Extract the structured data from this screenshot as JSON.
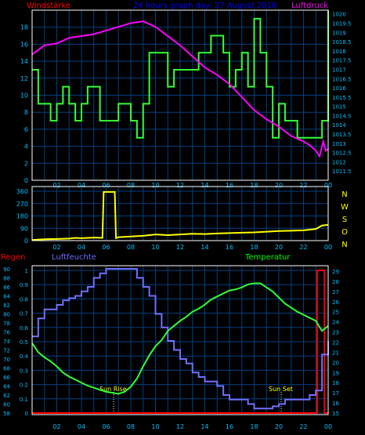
{
  "header": {
    "left_label": "Windstärke",
    "title": "24 hours graph day:  27 August  2018",
    "right_label": "Luftdruck"
  },
  "colors": {
    "background": "#000000",
    "grid": "#004080",
    "frame": "#ffffff",
    "tick_text": "#00bfff",
    "wind": "#33ff33",
    "pressure": "#ff00ff",
    "direction": "#ffff00",
    "humidity": "#7070ff",
    "temperature": "#33ff33",
    "rain": "#ff0000",
    "left_label": "#ff0000",
    "header_title": "#0000ff",
    "right_label": "#ff00ff",
    "hum_label": "#6a6aff",
    "temp_label": "#00ff00",
    "regen_label": "#ff0000",
    "dir_letters": "#ffff00",
    "sun_text": "#ffff00"
  },
  "panel1": {
    "wind_ticks": [
      "0",
      "2",
      "4",
      "6",
      "8",
      "10",
      "12",
      "14",
      "16",
      "18"
    ],
    "pressure_ticks": [
      "1011.5",
      "1012",
      "1012.5",
      "1013",
      "1013.5",
      "1014",
      "1014.5",
      "1015",
      "1015.5",
      "1016",
      "1016.5",
      "1017",
      "1017.5",
      "1018",
      "1018.5",
      "1019",
      "1019.5",
      "1020"
    ],
    "x_ticks": [
      "02",
      "04",
      "06",
      "08",
      "10",
      "12",
      "14",
      "16",
      "18",
      "20",
      "22",
      "00"
    ]
  },
  "panel2": {
    "y_ticks": [
      "0",
      "90",
      "180",
      "270",
      "360"
    ],
    "direction_letters": [
      "N",
      "W",
      "S",
      "O",
      "N"
    ],
    "x_ticks": [
      "02",
      "04",
      "06",
      "08",
      "10",
      "12",
      "14",
      "16",
      "18",
      "20",
      "22",
      "00"
    ]
  },
  "panel3": {
    "labels": {
      "regen": "Regen",
      "humidity": "Luftfeuchte",
      "temperature": "Temperatur",
      "sun_rise": "Sun Rise",
      "sun_set": "Sun Set"
    },
    "humidity_ticks": [
      "58",
      "60",
      "62",
      "64",
      "66",
      "68",
      "70",
      "72",
      "74",
      "76",
      "78",
      "80",
      "82",
      "84",
      "86",
      "88",
      "90"
    ],
    "rain_ticks": [
      "0",
      "0.1",
      "0.2",
      "0.3",
      "0.4",
      "0.5",
      "0.6",
      "0.7",
      "0.8",
      "0.9",
      "1"
    ],
    "temperature_ticks": [
      "15",
      "16",
      "17",
      "18",
      "19",
      "20",
      "21",
      "22",
      "23",
      "24",
      "25",
      "26",
      "27",
      "28",
      "29"
    ],
    "x_ticks": [
      "02",
      "04",
      "06",
      "08",
      "10",
      "12",
      "14",
      "16",
      "18",
      "20",
      "22",
      "00"
    ]
  },
  "chart_data": [
    {
      "type": "line",
      "title": "24 hours graph day:  27 August  2018",
      "xlabel": "",
      "ylabel": "Windstärke",
      "x_range": [
        0,
        24
      ],
      "ylim": [
        0,
        20
      ],
      "y2label": "Luftdruck",
      "y2lim": [
        1011,
        1020.2
      ],
      "series": [
        {
          "name": "Windstärke",
          "axis": "left",
          "step": true,
          "x": [
            0,
            0.5,
            1.0,
            1.5,
            2.0,
            2.5,
            3.0,
            3.5,
            4.0,
            4.5,
            5.0,
            5.5,
            6.0,
            6.5,
            7.0,
            7.5,
            8.0,
            8.5,
            9.0,
            9.5,
            10.5,
            11.0,
            11.5,
            12.0,
            12.5,
            13.0,
            13.5,
            14.0,
            14.5,
            15.0,
            15.5,
            16.0,
            16.5,
            17.0,
            17.5,
            18.0,
            18.5,
            19.0,
            19.5,
            20.0,
            20.5,
            21.0,
            21.5,
            22.0,
            22.5,
            23.0,
            23.5,
            24.0
          ],
          "y": [
            13,
            9,
            9,
            7,
            9,
            11,
            9,
            7,
            9,
            11,
            11,
            7,
            7,
            7,
            9,
            9,
            7,
            5,
            9,
            15,
            15,
            11,
            13,
            13,
            13,
            13,
            15,
            15,
            17,
            17,
            15,
            11,
            13,
            15,
            11,
            19,
            15,
            11,
            5,
            9,
            7,
            7,
            5,
            5,
            5,
            5,
            7,
            20
          ]
        },
        {
          "name": "Luftdruck",
          "axis": "right",
          "x": [
            0,
            1,
            2,
            3,
            4,
            5,
            6,
            7,
            8,
            9,
            10,
            11,
            12,
            13,
            14,
            15,
            16,
            17,
            18,
            19,
            20,
            21,
            22,
            22.5,
            23,
            23.3,
            23.6,
            23.8,
            24
          ],
          "y": [
            1017.8,
            1018.3,
            1018.4,
            1018.7,
            1018.8,
            1018.9,
            1019.1,
            1019.3,
            1019.5,
            1019.6,
            1019.3,
            1018.8,
            1018.3,
            1017.7,
            1017.1,
            1016.7,
            1016.2,
            1015.5,
            1014.8,
            1014.3,
            1013.9,
            1013.4,
            1013.1,
            1012.9,
            1012.6,
            1012.3,
            1013.1,
            1012.6,
            1012.7
          ]
        }
      ]
    },
    {
      "type": "line",
      "xlabel": "",
      "ylabel": "",
      "x_range": [
        0,
        24
      ],
      "ylim": [
        0,
        360
      ],
      "series": [
        {
          "x": [
            0,
            1,
            2,
            3,
            3.5,
            4,
            5,
            5.7,
            5.8,
            6.7,
            6.8,
            7,
            8,
            9,
            10,
            11,
            12,
            13,
            14,
            15,
            16,
            17,
            18,
            19,
            20,
            21,
            22,
            23,
            23.5,
            24
          ],
          "y": [
            5,
            10,
            12,
            15,
            20,
            18,
            22,
            20,
            355,
            355,
            18,
            25,
            30,
            35,
            45,
            40,
            45,
            50,
            48,
            52,
            55,
            58,
            60,
            65,
            70,
            72,
            75,
            85,
            110,
            115
          ]
        }
      ]
    },
    {
      "type": "line",
      "xlabel": "",
      "ylabel": "Regen",
      "x_range": [
        0,
        24
      ],
      "ylim": [
        0,
        1
      ],
      "y2label": "Luftfeuchte",
      "y2lim": [
        58,
        90
      ],
      "y3label": "Temperatur",
      "y3lim": [
        15,
        29
      ],
      "series": [
        {
          "name": "Regen",
          "axis": "left",
          "x": [
            0,
            23.1,
            23.1,
            23.7,
            23.7,
            24
          ],
          "y": [
            0,
            0,
            1,
            1,
            0,
            0
          ]
        },
        {
          "name": "Luftfeuchte",
          "axis": "right",
          "x": [
            0,
            0.5,
            1,
            1.5,
            2,
            2.5,
            3,
            3.5,
            4,
            4.5,
            5,
            5.5,
            6,
            6.5,
            7,
            7.5,
            8,
            8.5,
            9,
            9.5,
            10,
            10.5,
            11,
            11.5,
            12,
            12.5,
            13,
            13.5,
            14,
            14.5,
            15,
            15.5,
            16,
            16.5,
            17,
            17.5,
            18,
            18.5,
            19,
            19.5,
            20,
            20.5,
            21,
            21.5,
            22,
            22.5,
            23,
            23.5,
            24
          ],
          "y": [
            75,
            79,
            81,
            81,
            82,
            83,
            83.5,
            84,
            85,
            86,
            88,
            89,
            90,
            90,
            90,
            90,
            90,
            88,
            86,
            84,
            80,
            77,
            74,
            72,
            70,
            69,
            67,
            66,
            65,
            65,
            64,
            62,
            61,
            61,
            61,
            60,
            59,
            59,
            59,
            59.5,
            60,
            61,
            61,
            61,
            61,
            62,
            63,
            71,
            74
          ]
        },
        {
          "name": "Temperatur",
          "axis": "far_right",
          "x": [
            0,
            0.5,
            1,
            1.5,
            2,
            2.5,
            3,
            3.5,
            4,
            4.5,
            5,
            5.5,
            6,
            6.5,
            7,
            7.5,
            8,
            8.5,
            9,
            9.5,
            10,
            10.5,
            11,
            11.5,
            12,
            12.5,
            13,
            13.5,
            14,
            14.5,
            15,
            15.5,
            16,
            16.5,
            17,
            17.5,
            18,
            18.5,
            19,
            19.5,
            20,
            20.5,
            21,
            21.5,
            22,
            22.5,
            23,
            23.5,
            24
          ],
          "y": [
            21.9,
            21.0,
            20.5,
            20.1,
            19.6,
            19.0,
            18.6,
            18.3,
            18.0,
            17.7,
            17.5,
            17.3,
            17.1,
            17.0,
            16.9,
            17.1,
            17.6,
            18.4,
            19.6,
            20.7,
            21.6,
            22.2,
            23.1,
            23.6,
            24.1,
            24.5,
            25.0,
            25.3,
            25.7,
            26.2,
            26.5,
            26.8,
            27.1,
            27.2,
            27.4,
            27.7,
            27.8,
            27.8,
            27.4,
            27.0,
            26.4,
            25.8,
            25.4,
            25.0,
            24.7,
            24.4,
            24.1,
            23.1,
            23.6
          ]
        }
      ],
      "annotations": [
        {
          "text": "Sun Rise",
          "x": 6.5
        },
        {
          "text": "Sun Set",
          "x": 21.1
        }
      ]
    }
  ]
}
